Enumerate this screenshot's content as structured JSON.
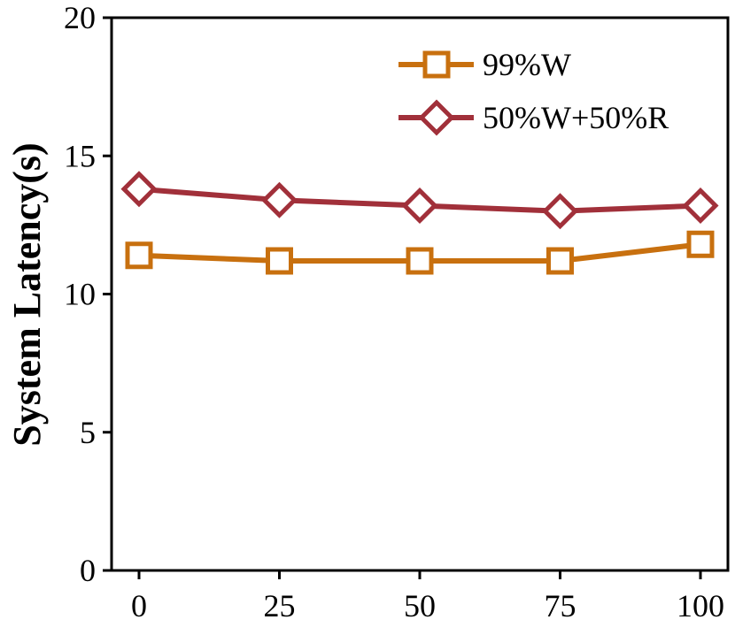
{
  "chart_data": {
    "type": "line",
    "title": "",
    "xlabel": "",
    "ylabel": "System Latency(s)",
    "x": [
      0,
      25,
      50,
      75,
      100
    ],
    "xticks": [
      "0",
      "25",
      "50",
      "75",
      "100"
    ],
    "yticks": [
      "0",
      "5",
      "10",
      "15",
      "20"
    ],
    "ylim": [
      0,
      20
    ],
    "grid": false,
    "legend_position": "top-right",
    "series": [
      {
        "name": "99%W",
        "marker": "square",
        "color": "#c8700f",
        "values": [
          11.4,
          11.2,
          11.2,
          11.2,
          11.8
        ]
      },
      {
        "name": "50%W+50%R",
        "marker": "diamond",
        "color": "#a1303a",
        "values": [
          13.8,
          13.4,
          13.2,
          13.0,
          13.2
        ]
      }
    ]
  }
}
